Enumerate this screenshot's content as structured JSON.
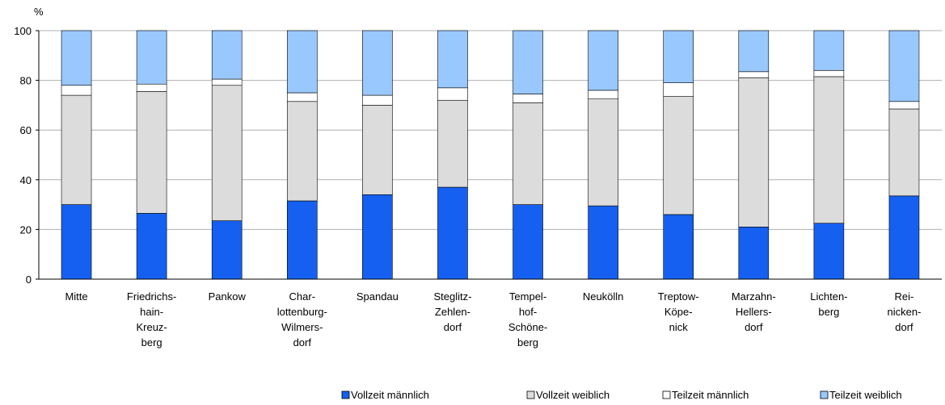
{
  "chart_data": {
    "type": "stacked_bar",
    "y_label": "%",
    "categories": [
      "Mitte",
      "Friedrichs-\nhain-\nKreuz-\nberg",
      "Pankow",
      "Char-\nlottenburg-\nWilmers-\ndorf",
      "Spandau",
      "Steglitz-\nZehlen-\ndorf",
      "Tempel-\nhof-\nSchöne-\nberg",
      "Neukölln",
      "Treptow-\nKöpe-\nnick",
      "Marzahn-\nHellers-\ndorf",
      "Lichten-\nberg",
      "Rei-\nnicken-\ndorf"
    ],
    "series": [
      {
        "name": "Vollzeit männlich",
        "color": "#1560f0",
        "values": [
          30,
          26.5,
          23.5,
          31.5,
          34,
          37,
          30,
          29.5,
          26,
          21,
          22.5,
          33.5
        ]
      },
      {
        "name": "Vollzeit weiblich",
        "color": "#dcdcdc",
        "values": [
          44,
          49,
          54.5,
          40,
          36,
          35,
          41,
          43,
          47.5,
          60,
          59,
          35
        ]
      },
      {
        "name": "Teilzeit männlich",
        "color": "#ffffff",
        "values": [
          4,
          3,
          2.5,
          3.5,
          4,
          5,
          3.5,
          3.5,
          5.5,
          2.5,
          2.5,
          3
        ]
      },
      {
        "name": "Teilzeit weiblich",
        "color": "#99c8ff",
        "values": [
          22,
          21.5,
          19.5,
          25,
          26,
          23,
          25.5,
          24,
          21,
          16.5,
          16,
          28.5
        ]
      }
    ],
    "ylim": [
      0,
      100
    ],
    "yticks": [
      0,
      20,
      40,
      60,
      80,
      100
    ],
    "grid": true
  }
}
